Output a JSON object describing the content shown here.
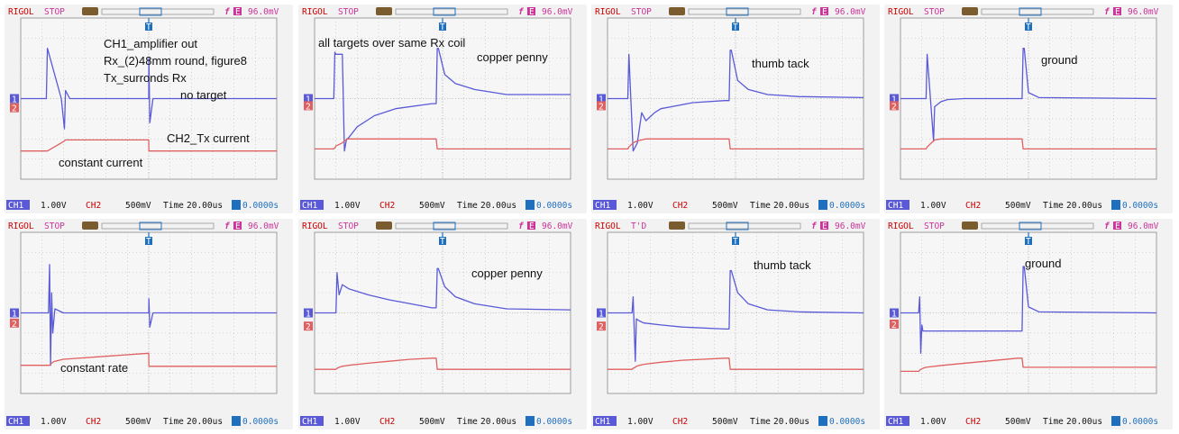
{
  "scope": {
    "brand": "RIGOL",
    "trigger_symbol": "f",
    "trigger_source": "E",
    "trigger_level": "96.0mV",
    "ch1_label": "CH1",
    "ch1_scale": "1.00V",
    "ch2_label": "CH2",
    "ch2_scale": "500mV",
    "time_label": "Time",
    "timebase": "20.00us",
    "trigger_offset": "0.0000s",
    "trigger_marker": "T",
    "ch1_marker": "1",
    "ch2_marker": "2",
    "colors": {
      "ch1": "#5a5ad8",
      "ch2": "#e06060",
      "brand": "#cc0000",
      "status": "#cc3399",
      "trigger": "#1f6fbf",
      "background": "#f2f2f2",
      "grid": "#bbbbbb"
    }
  },
  "chart_data": [
    {
      "type": "line",
      "status": "STOP",
      "annotations": [
        "CH1_amplifier out",
        "Rx_(2)48mm round, figure8",
        "Tx_surronds Rx",
        "no target",
        "CH2_Tx current",
        "constant current"
      ],
      "x_divisions": 12,
      "y_divisions": 8,
      "x": [
        0,
        1.2,
        1.25,
        1.9,
        2.05,
        2.1,
        2.3,
        4.5,
        6.0,
        6.01,
        6.05,
        6.2,
        12
      ],
      "series": [
        {
          "name": "CH1",
          "y": [
            0,
            0,
            2.5,
            0,
            -1.5,
            0.4,
            0,
            0,
            0,
            2.0,
            -1.2,
            0,
            0
          ]
        },
        {
          "name": "CH2",
          "y": [
            -2.6,
            -2.6,
            -2.6,
            -2.2,
            -2.1,
            -2.05,
            -2.05,
            -2.05,
            -2.05,
            -2.6,
            -2.6,
            -2.6,
            -2.6
          ]
        }
      ]
    },
    {
      "type": "line",
      "status": "STOP",
      "annotations": [
        "all targets over same Rx coil",
        "copper penny"
      ],
      "x_divisions": 12,
      "y_divisions": 8,
      "x": [
        0,
        0.9,
        0.95,
        1.0,
        1.3,
        1.4,
        1.5,
        1.55,
        2.0,
        2.8,
        3.8,
        5.5,
        5.7,
        5.75,
        5.8,
        6.1,
        6.6,
        7.5,
        9.0,
        12
      ],
      "series": [
        {
          "name": "CH1",
          "y": [
            0,
            0,
            2.3,
            2.2,
            2.2,
            -2.6,
            -2.0,
            -2.0,
            -1.4,
            -0.85,
            -0.5,
            -0.25,
            -0.25,
            2.5,
            2.5,
            1.2,
            0.75,
            0.45,
            0.2,
            0.2
          ]
        },
        {
          "name": "CH2",
          "y": [
            -2.5,
            -2.5,
            -2.45,
            -2.35,
            -2.2,
            -2.1,
            -2.05,
            -2.0,
            -2.0,
            -2.0,
            -2.0,
            -2.0,
            -2.0,
            -2.5,
            -2.5,
            -2.5,
            -2.5,
            -2.5,
            -2.5,
            -2.5
          ]
        }
      ]
    },
    {
      "type": "line",
      "status": "STOP",
      "annotations": [
        "thumb tack"
      ],
      "x_divisions": 12,
      "y_divisions": 8,
      "x": [
        0,
        0.95,
        1.0,
        1.2,
        1.4,
        1.6,
        1.8,
        2.2,
        2.5,
        3.0,
        4.0,
        5.5,
        5.7,
        5.75,
        5.8,
        6.1,
        6.6,
        7.5,
        9.0,
        12
      ],
      "series": [
        {
          "name": "CH1",
          "y": [
            0,
            0,
            2.2,
            -2.6,
            -2.2,
            -0.7,
            -1.1,
            -0.7,
            -0.5,
            -0.4,
            -0.2,
            -0.1,
            -0.1,
            2.4,
            2.4,
            0.9,
            0.45,
            0.2,
            0.1,
            0.05
          ]
        },
        {
          "name": "CH2",
          "y": [
            -2.5,
            -2.5,
            -2.4,
            -2.2,
            -2.1,
            -2.05,
            -2.0,
            -2.0,
            -2.0,
            -2.0,
            -2.0,
            -2.0,
            -2.0,
            -2.5,
            -2.5,
            -2.5,
            -2.5,
            -2.5,
            -2.5,
            -2.5
          ]
        }
      ]
    },
    {
      "type": "line",
      "status": "STOP",
      "annotations": [
        "ground"
      ],
      "x_divisions": 12,
      "y_divisions": 8,
      "x": [
        0,
        1.2,
        1.25,
        1.55,
        1.6,
        1.9,
        2.2,
        3.0,
        5.5,
        5.7,
        5.75,
        5.8,
        6.0,
        6.5,
        12
      ],
      "series": [
        {
          "name": "CH1",
          "y": [
            0,
            0,
            2.2,
            -2.1,
            -0.4,
            -0.15,
            -0.05,
            0,
            0,
            0,
            2.5,
            2.5,
            0.3,
            0.05,
            0
          ]
        },
        {
          "name": "CH2",
          "y": [
            -2.5,
            -2.5,
            -2.4,
            -2.1,
            -2.05,
            -2.0,
            -2.0,
            -2.0,
            -2.0,
            -2.0,
            -2.5,
            -2.5,
            -2.5,
            -2.5,
            -2.5
          ]
        }
      ]
    },
    {
      "type": "line",
      "status": "STOP",
      "annotations": [
        "constant rate"
      ],
      "x_divisions": 12,
      "y_divisions": 8,
      "x": [
        0,
        1.3,
        1.35,
        1.4,
        1.45,
        1.5,
        1.6,
        2.0,
        6.0,
        6.01,
        6.05,
        6.2,
        12
      ],
      "series": [
        {
          "name": "CH1",
          "y": [
            0,
            0,
            2.4,
            -2.6,
            1.0,
            -1.0,
            0.2,
            0,
            0,
            0.7,
            -0.7,
            0,
            0
          ]
        },
        {
          "name": "CH2",
          "y": [
            -2.6,
            -2.6,
            -2.6,
            -2.55,
            -2.5,
            -2.45,
            -2.4,
            -2.3,
            -2.0,
            -2.65,
            -2.65,
            -2.65,
            -2.65
          ]
        }
      ]
    },
    {
      "type": "line",
      "status": "STOP",
      "annotations": [
        "copper penny"
      ],
      "x_divisions": 12,
      "y_divisions": 8,
      "x": [
        0,
        1.0,
        1.05,
        1.15,
        1.3,
        1.6,
        2.5,
        3.5,
        4.5,
        5.5,
        5.7,
        5.75,
        5.8,
        6.1,
        6.6,
        7.5,
        9.0,
        12
      ],
      "series": [
        {
          "name": "CH1",
          "y": [
            0,
            0,
            2.0,
            0.9,
            1.4,
            1.2,
            0.9,
            0.65,
            0.45,
            0.25,
            0.25,
            2.2,
            2.2,
            1.3,
            0.8,
            0.45,
            0.2,
            0.15
          ]
        },
        {
          "name": "CH2",
          "y": [
            -2.8,
            -2.8,
            -2.75,
            -2.7,
            -2.65,
            -2.6,
            -2.5,
            -2.4,
            -2.3,
            -2.25,
            -2.25,
            -2.8,
            -2.8,
            -2.8,
            -2.8,
            -2.8,
            -2.8,
            -2.8
          ]
        }
      ]
    },
    {
      "type": "line",
      "status": "T'D",
      "annotations": [
        "thumb tack"
      ],
      "x_divisions": 12,
      "y_divisions": 8,
      "x": [
        0,
        1.15,
        1.2,
        1.3,
        1.35,
        1.5,
        1.7,
        2.5,
        3.5,
        5.5,
        5.7,
        5.75,
        5.8,
        6.1,
        6.6,
        7.5,
        9.0,
        12
      ],
      "series": [
        {
          "name": "CH1",
          "y": [
            0,
            0,
            0.8,
            -2.4,
            -0.3,
            -0.4,
            -0.5,
            -0.6,
            -0.7,
            -0.8,
            -0.8,
            2.1,
            2.1,
            1.0,
            0.45,
            0.15,
            0.05,
            0.0
          ]
        },
        {
          "name": "CH2",
          "y": [
            -2.8,
            -2.8,
            -2.75,
            -2.7,
            -2.65,
            -2.6,
            -2.55,
            -2.45,
            -2.35,
            -2.25,
            -2.25,
            -2.8,
            -2.8,
            -2.8,
            -2.8,
            -2.8,
            -2.8,
            -2.8
          ]
        }
      ]
    },
    {
      "type": "line",
      "status": "STOP",
      "annotations": [
        "ground"
      ],
      "x_divisions": 12,
      "y_divisions": 8,
      "x": [
        0,
        0.85,
        0.9,
        0.95,
        1.0,
        1.05,
        1.2,
        2.0,
        5.5,
        5.7,
        5.75,
        5.8,
        6.0,
        6.5,
        12
      ],
      "series": [
        {
          "name": "CH1",
          "y": [
            0,
            0,
            0.8,
            -2.0,
            -0.6,
            -0.9,
            -0.9,
            -0.9,
            -0.9,
            -0.9,
            2.3,
            2.3,
            0.3,
            0.05,
            0
          ]
        },
        {
          "name": "CH2",
          "y": [
            -2.9,
            -2.9,
            -2.85,
            -2.8,
            -2.78,
            -2.75,
            -2.7,
            -2.6,
            -2.25,
            -2.25,
            -2.7,
            -2.7,
            -2.7,
            -2.7,
            -2.7
          ]
        }
      ]
    }
  ]
}
